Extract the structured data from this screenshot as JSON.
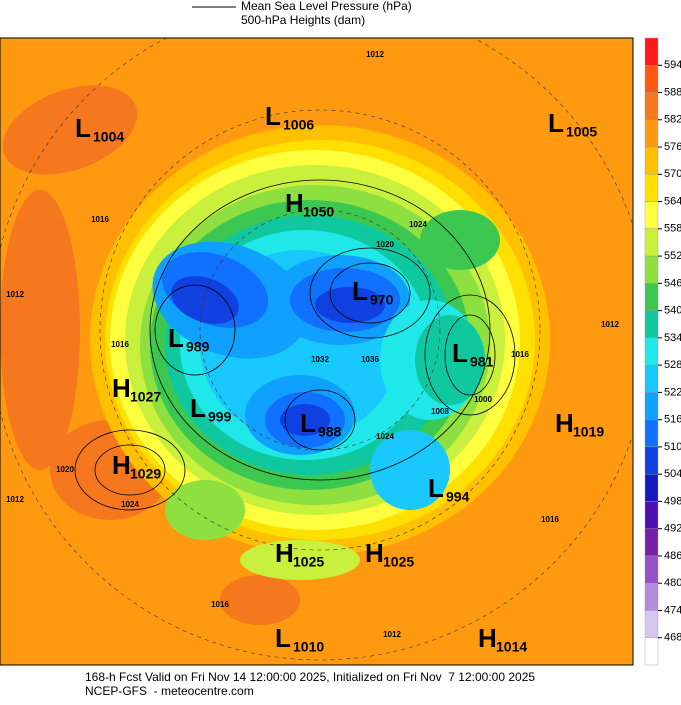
{
  "legend": {
    "line_label": "Mean Sea Level Pressure (hPa)",
    "fill_label": "500-hPa Heights (dam)"
  },
  "colorbar": {
    "ticks": [
      594,
      588,
      582,
      576,
      570,
      564,
      558,
      552,
      546,
      540,
      534,
      528,
      522,
      516,
      510,
      504,
      498,
      492,
      486,
      480,
      474,
      468
    ],
    "colors": [
      "#ff1a1a",
      "#ff5a10",
      "#f5781e",
      "#ff9a10",
      "#ffc000",
      "#ffe000",
      "#ffff40",
      "#c8f03c",
      "#8ee040",
      "#3cc850",
      "#10c8a0",
      "#20e8e8",
      "#18c8ff",
      "#10a0ff",
      "#1070ff",
      "#1040e0",
      "#1818c0",
      "#5010b0",
      "#7820a8",
      "#9650c8",
      "#b48cdc",
      "#d4c8f0",
      "#ffffff"
    ]
  },
  "centers": [
    {
      "type": "L",
      "value": 1004
    },
    {
      "type": "L",
      "value": 1006
    },
    {
      "type": "L",
      "value": 1005
    },
    {
      "type": "H",
      "value": 1050
    },
    {
      "type": "L",
      "value": 970
    },
    {
      "type": "L",
      "value": 989
    },
    {
      "type": "L",
      "value": 981
    },
    {
      "type": "H",
      "value": 1027
    },
    {
      "type": "L",
      "value": 999
    },
    {
      "type": "H",
      "value": 1019
    },
    {
      "type": "L",
      "value": 988
    },
    {
      "type": "H",
      "value": 1029
    },
    {
      "type": "L",
      "value": 994
    },
    {
      "type": "H",
      "value": 1025
    },
    {
      "type": "H",
      "value": 1025
    },
    {
      "type": "L",
      "value": 1010
    },
    {
      "type": "H",
      "value": 1014
    }
  ],
  "isobar_labels": [
    1012,
    1016,
    1012,
    1016,
    1020,
    1024,
    1012,
    1020,
    1024,
    1032,
    1036,
    1024,
    1000,
    1008,
    1016,
    1016,
    1012,
    1012,
    1016
  ],
  "footer": {
    "line1": "168-h Fcst Valid on Fri Nov 14 12:00:00 2025, Initialized on Fri Nov  7 12:00:00 2025",
    "line2": "NCEP-GFS  - meteocentre.com"
  }
}
